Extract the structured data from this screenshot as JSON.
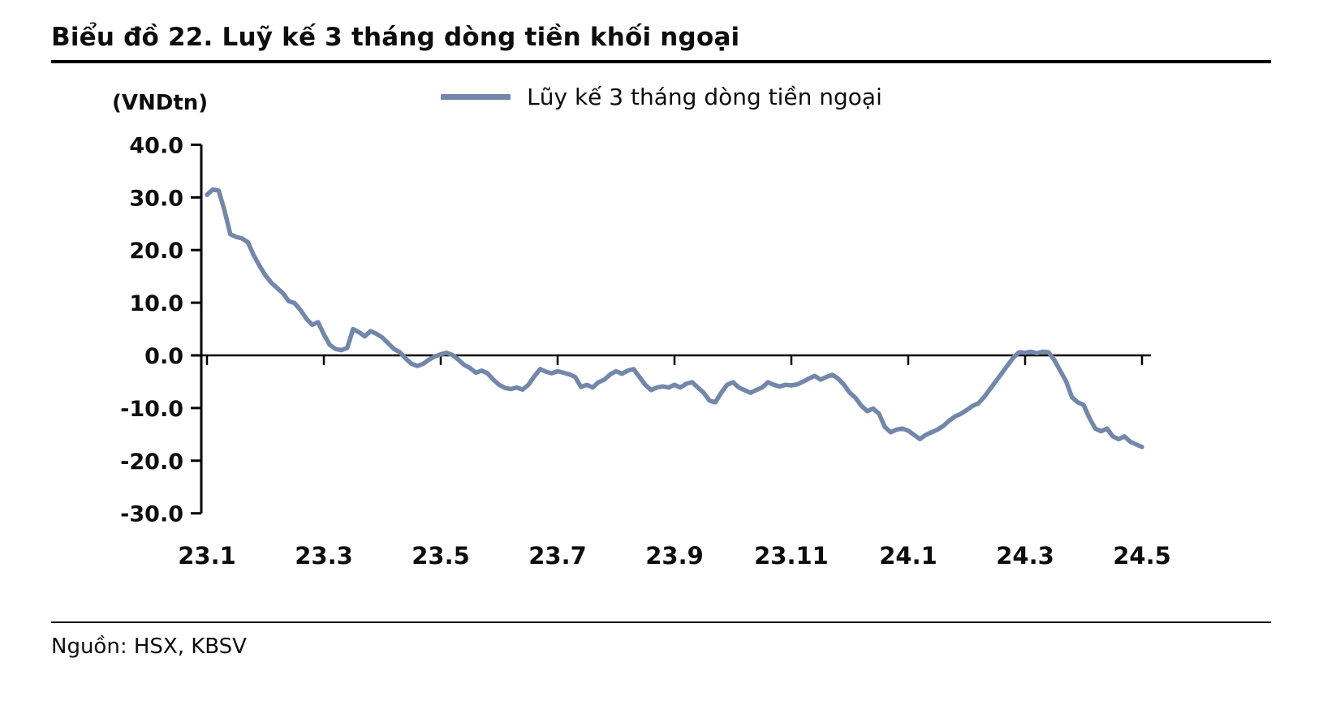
{
  "header": {
    "title": "Biểu đồ 22. Luỹ kế 3 tháng dòng tiền khối ngoại"
  },
  "legend": {
    "label": "Lũy kế 3 tháng dòng tiền ngoại"
  },
  "footer": {
    "source": "Nguồn: HSX, KBSV"
  },
  "chart_data": {
    "type": "line",
    "title": "Biểu đồ 22. Luỹ kế 3 tháng dòng tiền khối ngoại",
    "unit_label": "(VNDtn)",
    "line_color": "#7287aa",
    "axis_color": "#000000",
    "grid": false,
    "legend_position": "top-center",
    "xlim": [
      0,
      16.2
    ],
    "ylim": [
      -30,
      40
    ],
    "x_tick_positions": [
      0,
      2,
      4,
      6,
      8,
      10,
      12,
      14,
      16
    ],
    "x_tick_labels": [
      "23.1",
      "23.3",
      "23.5",
      "23.7",
      "23.9",
      "23.11",
      "24.1",
      "24.3",
      "24.5"
    ],
    "y_tick_values": [
      40,
      30,
      20,
      10,
      0,
      -10,
      -20,
      -30
    ],
    "y_tick_labels": [
      "40.0",
      "30.0",
      "20.0",
      "10.0",
      "0.0",
      "-10.0",
      "-20.0",
      "-30.0"
    ],
    "zero_axis": true,
    "x_start": 0,
    "x_step": 0.1,
    "x_unit": "months since 23.1 (YY.M)",
    "series": [
      {
        "name": "Lũy kế 3 tháng dòng tiền ngoại",
        "values": [
          30.5,
          31.5,
          31.3,
          27.5,
          23.0,
          22.5,
          22.2,
          21.5,
          19.0,
          17.0,
          15.2,
          13.8,
          12.8,
          11.8,
          10.3,
          9.9,
          8.6,
          7.0,
          5.8,
          6.3,
          4.0,
          2.0,
          1.2,
          1.0,
          1.4,
          5.0,
          4.4,
          3.6,
          4.6,
          4.1,
          3.4,
          2.3,
          1.2,
          0.6,
          -0.6,
          -1.6,
          -2.0,
          -1.6,
          -0.8,
          -0.2,
          0.2,
          0.5,
          0.1,
          -0.8,
          -1.8,
          -2.4,
          -3.3,
          -2.9,
          -3.4,
          -4.6,
          -5.6,
          -6.2,
          -6.4,
          -6.1,
          -6.5,
          -5.6,
          -4.0,
          -2.6,
          -3.1,
          -3.4,
          -3.0,
          -3.3,
          -3.6,
          -4.1,
          -6.0,
          -5.6,
          -6.1,
          -5.1,
          -4.6,
          -3.6,
          -3.0,
          -3.5,
          -2.9,
          -2.6,
          -4.1,
          -5.6,
          -6.6,
          -6.1,
          -5.9,
          -6.1,
          -5.6,
          -6.1,
          -5.4,
          -5.1,
          -6.1,
          -7.1,
          -8.6,
          -8.9,
          -7.1,
          -5.6,
          -5.1,
          -6.1,
          -6.6,
          -7.1,
          -6.6,
          -6.1,
          -5.1,
          -5.6,
          -5.9,
          -5.6,
          -5.7,
          -5.5,
          -5.0,
          -4.4,
          -3.9,
          -4.6,
          -4.1,
          -3.7,
          -4.4,
          -5.6,
          -7.1,
          -8.1,
          -9.6,
          -10.6,
          -10.1,
          -11.1,
          -13.6,
          -14.6,
          -14.1,
          -13.9,
          -14.3,
          -15.1,
          -15.9,
          -15.1,
          -14.6,
          -14.1,
          -13.4,
          -12.4,
          -11.6,
          -11.1,
          -10.4,
          -9.6,
          -9.1,
          -7.9,
          -6.4,
          -4.9,
          -3.4,
          -1.9,
          -0.4,
          0.6,
          0.5,
          0.7,
          0.4,
          0.7,
          0.6,
          -0.9,
          -2.9,
          -4.9,
          -7.9,
          -8.9,
          -9.4,
          -11.9,
          -13.9,
          -14.4,
          -13.9,
          -15.4,
          -15.9,
          -15.4,
          -16.4,
          -16.9,
          -17.4
        ]
      }
    ]
  }
}
